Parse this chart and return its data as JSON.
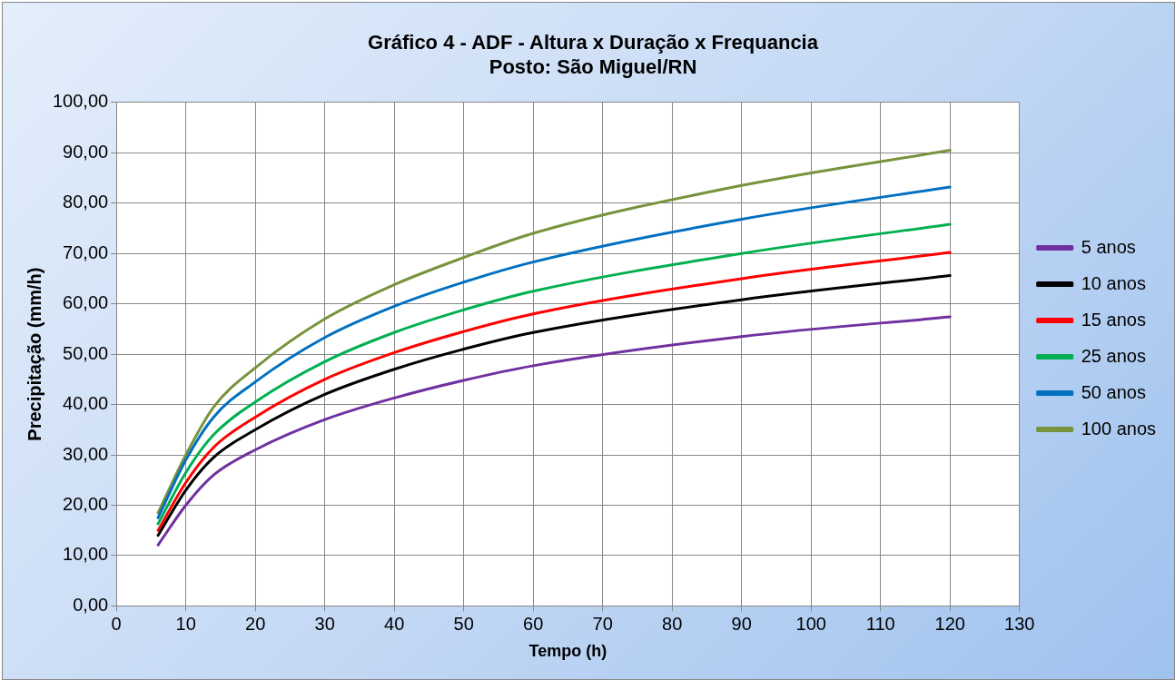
{
  "chart_data": {
    "type": "line",
    "title": "Gráfico 4 - ADF - Altura x Duração x Frequancia",
    "subtitle": "Posto: São Miguel/RN",
    "xlabel": "Tempo (h)",
    "ylabel": "Precipitação (mm/h)",
    "x": [
      6,
      10,
      14,
      20,
      30,
      40,
      50,
      60,
      90,
      120
    ],
    "xlim": [
      0,
      130
    ],
    "xticks": [
      0,
      10,
      20,
      30,
      40,
      50,
      60,
      70,
      80,
      90,
      100,
      110,
      120,
      130
    ],
    "ylim": [
      0,
      100
    ],
    "yticks": [
      {
        "value": 0,
        "label": "0,00"
      },
      {
        "value": 10,
        "label": "10,00"
      },
      {
        "value": 20,
        "label": "20,00"
      },
      {
        "value": 30,
        "label": "30,00"
      },
      {
        "value": 40,
        "label": "40,00"
      },
      {
        "value": 50,
        "label": "50,00"
      },
      {
        "value": 60,
        "label": "60,00"
      },
      {
        "value": 70,
        "label": "70,00"
      },
      {
        "value": 80,
        "label": "80,00"
      },
      {
        "value": 90,
        "label": "90,00"
      },
      {
        "value": 100,
        "label": "100,00"
      }
    ],
    "grid": true,
    "legend": "right",
    "marker": "none",
    "line_style": "solid",
    "series": [
      {
        "name": "5 anos",
        "color": "#7030a0",
        "values": [
          12.1,
          20,
          26,
          31,
          37,
          41.3,
          44.8,
          47.7,
          53.5,
          57.4
        ]
      },
      {
        "name": "10 anos",
        "color": "#000000",
        "values": [
          14,
          23,
          29.5,
          35,
          42,
          47,
          51,
          54.3,
          60.8,
          65.6
        ]
      },
      {
        "name": "15 anos",
        "color": "#ff0000",
        "values": [
          15,
          24.5,
          31.5,
          37.5,
          45,
          50.3,
          54.5,
          58,
          65,
          70.2
        ]
      },
      {
        "name": "25 anos",
        "color": "#00b050",
        "values": [
          16.3,
          26.5,
          34,
          40.5,
          48.5,
          54.3,
          58.8,
          62.5,
          70,
          75.8
        ]
      },
      {
        "name": "50 anos",
        "color": "#0070c0",
        "values": [
          17.5,
          29,
          37.5,
          44.5,
          53.3,
          59.5,
          64.3,
          68.3,
          76.8,
          83.2
        ]
      },
      {
        "name": "100 anos",
        "color": "#77933c",
        "values": [
          18.5,
          30,
          39.5,
          47.3,
          57,
          63.8,
          69.2,
          74,
          83.5,
          90.5
        ]
      }
    ]
  }
}
